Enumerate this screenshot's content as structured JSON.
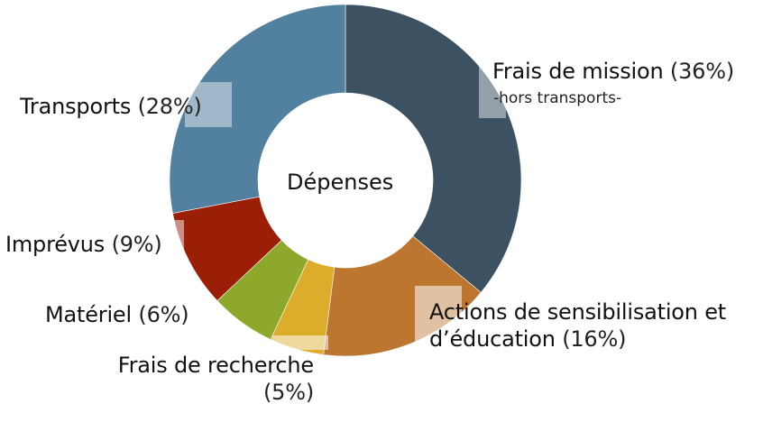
{
  "chart_data": {
    "type": "pie",
    "title": "",
    "center_label": "Dépenses",
    "slices": [
      {
        "label": "Frais de mission",
        "value": 36,
        "value_text": "(36%)",
        "note": "-hors transports-",
        "color": "#3c5263"
      },
      {
        "label": "Actions de sensibilisation et d’éducation",
        "value": 16,
        "value_text": "(16%)",
        "color": "#bd7630"
      },
      {
        "label": "Frais de recherche",
        "value": 5,
        "value_text": "(5%)",
        "color": "#dcac2b"
      },
      {
        "label": "Matériel",
        "value": 6,
        "value_text": "(6%)",
        "color": "#8ea82b"
      },
      {
        "label": "Imprévus",
        "value": 9,
        "value_text": "(9%)",
        "color": "#9b1e06"
      },
      {
        "label": "Transports",
        "value": 28,
        "value_text": "(28%)",
        "color": "#52809f"
      }
    ]
  }
}
